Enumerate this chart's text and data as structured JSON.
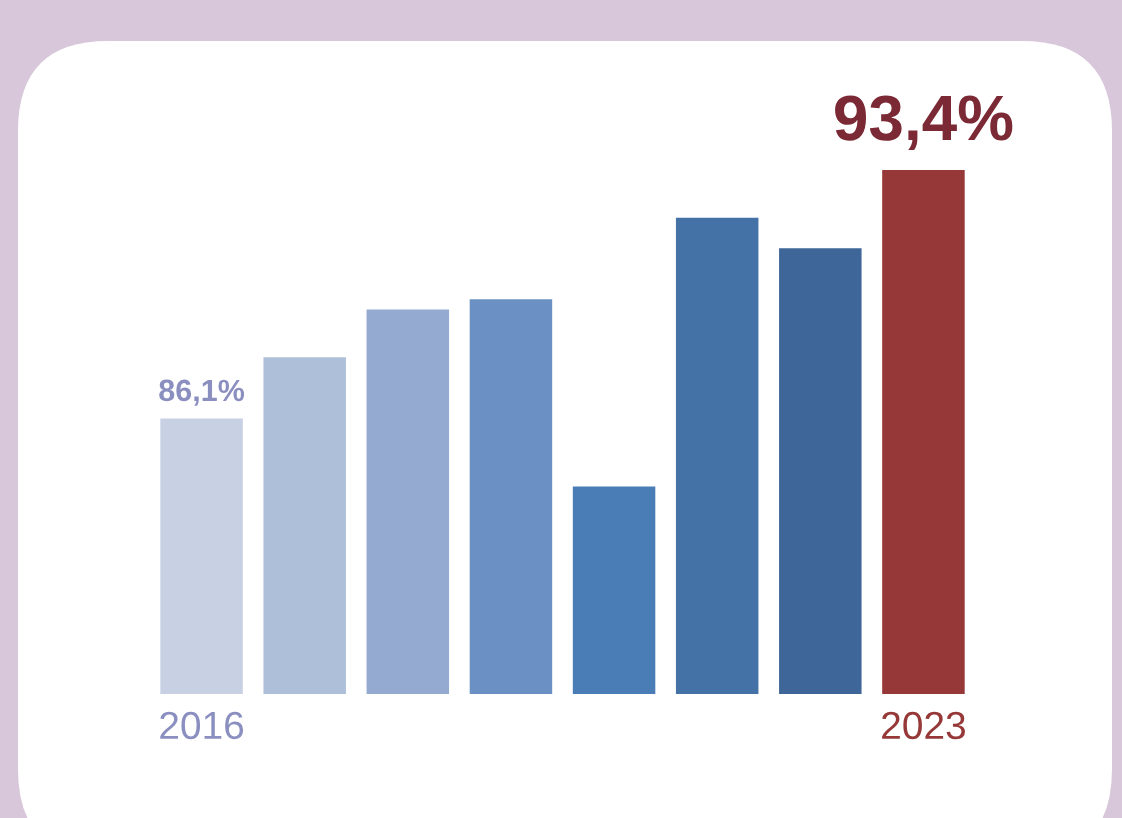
{
  "chart_data": {
    "type": "bar",
    "categories": [
      "2016",
      null,
      null,
      null,
      null,
      null,
      null,
      "2023"
    ],
    "values": [
      86.1,
      87.9,
      89.3,
      89.6,
      84.1,
      92.0,
      91.1,
      93.4
    ],
    "colors": [
      "#c8d1e3",
      "#adbfd9",
      "#95aad0",
      "#6a90c4",
      "#4a7db6",
      "#4472a6",
      "#3e6698",
      "#963838"
    ],
    "value_labels": [
      "86,1%",
      null,
      null,
      null,
      null,
      null,
      null,
      "93,4%"
    ],
    "ylim": [
      78,
      93.4
    ]
  }
}
